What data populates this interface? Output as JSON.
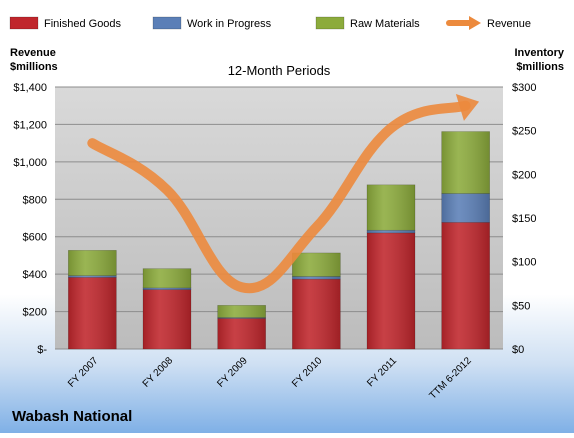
{
  "chart_data": {
    "type": "bar",
    "title": "12-Month Periods",
    "footer": "Wabash National",
    "categories": [
      "FY 2007",
      "FY 2008",
      "FY 2009",
      "FY 2010",
      "FY 2011",
      "TTM 6-2012"
    ],
    "bar_series": [
      {
        "name": "Finished Goods",
        "color": "#c0262c",
        "values": [
          82,
          68,
          35,
          80,
          133,
          145
        ]
      },
      {
        "name": "Work in Progress",
        "color": "#5b7fb7",
        "values": [
          2,
          2,
          1,
          3,
          3,
          33
        ]
      },
      {
        "name": "Raw Materials",
        "color": "#8cab3c",
        "values": [
          29,
          22,
          14,
          27,
          52,
          71
        ]
      }
    ],
    "line_series": {
      "name": "Revenue",
      "color": "#ec8a3d",
      "values": [
        1100,
        850,
        330,
        650,
        1180,
        1300
      ]
    },
    "stacked": true,
    "left_axis": {
      "label_line1": "Revenue",
      "label_line2": "$millions",
      "range": [
        0,
        1400
      ],
      "ticks": [
        "$-",
        "$200",
        "$400",
        "$600",
        "$800",
        "$1,000",
        "$1,200",
        "$1,400"
      ]
    },
    "right_axis": {
      "label_line1": "Inventory",
      "label_line2": "$millions",
      "range": [
        0,
        300
      ],
      "ticks": [
        "$0",
        "$50",
        "$100",
        "$150",
        "$200",
        "$250",
        "$300"
      ]
    },
    "legend": {
      "position": "top"
    },
    "grid": true
  }
}
